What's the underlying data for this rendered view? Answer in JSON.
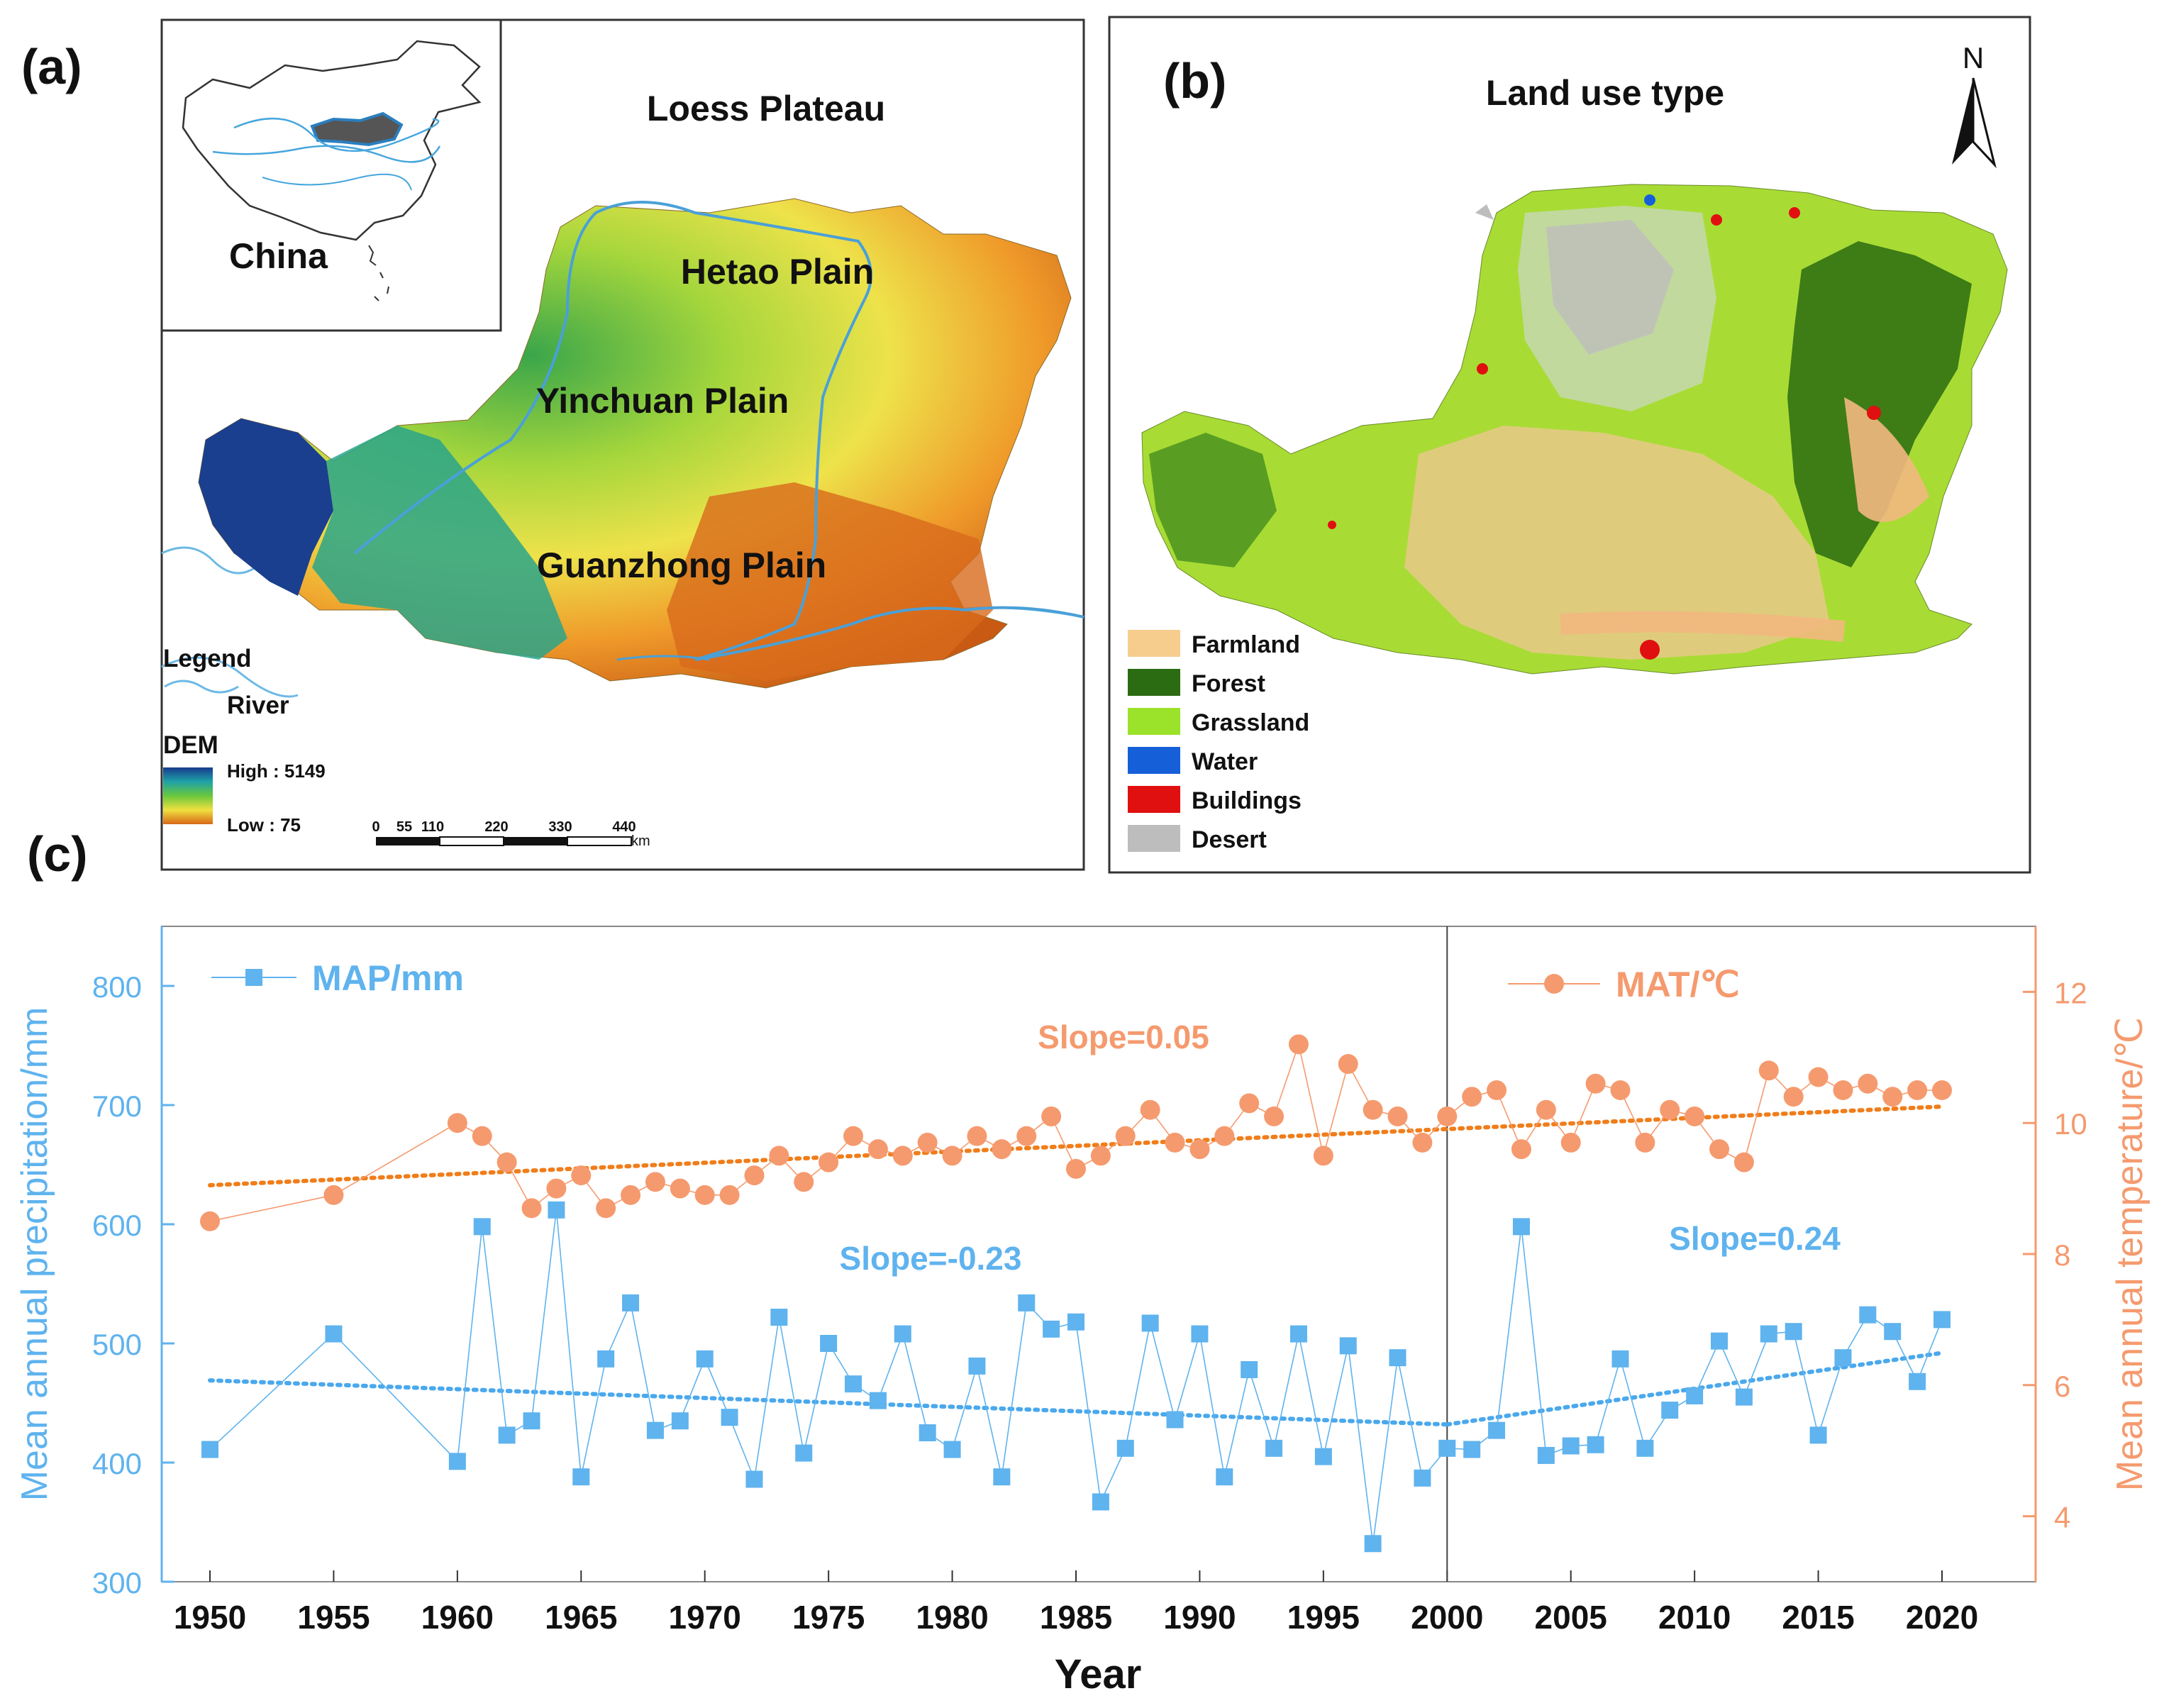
{
  "panel_a": {
    "label": "(a)",
    "title": "Loess Plateau",
    "inset_label": "China",
    "places": {
      "hetao": "Hetao Plain",
      "yinchuan": "Yinchuan Plain",
      "guanzhong": "Guanzhong Plain"
    },
    "legend": {
      "title": "Legend",
      "river": "River",
      "dem_title": "DEM",
      "high": "High : 5149",
      "low": "Low : 75"
    },
    "scalebar": {
      "ticks": [
        "0",
        "55",
        "110",
        "220",
        "330",
        "440"
      ],
      "unit": "km"
    }
  },
  "panel_b": {
    "label": "(b)",
    "title": "Land use type",
    "north": "N",
    "legend": [
      {
        "label": "Farmland",
        "color": "#f7cd8e"
      },
      {
        "label": "Forest",
        "color": "#2b6b12"
      },
      {
        "label": "Grassland",
        "color": "#9be22a"
      },
      {
        "label": "Water",
        "color": "#1560d8"
      },
      {
        "label": "Buildings",
        "color": "#e01010"
      },
      {
        "label": "Desert",
        "color": "#bdbdbd"
      }
    ]
  },
  "panel_c": {
    "label": "(c)",
    "map_legend": "MAP/mm",
    "mat_legend": "MAT/℃",
    "slope_mat": "Slope=0.05",
    "slope_map_1": "Slope=-0.23",
    "slope_map_2": "Slope=0.24",
    "colors": {
      "map": "#5fb3ee",
      "mat": "#f59a6e",
      "map_trend": "#4aa8ec",
      "mat_trend": "#f07d1a"
    }
  },
  "chart_data": {
    "type": "line",
    "title": "",
    "xlabel": "Year",
    "ylabel": "Mean annual precipitation/mm",
    "y2label": "Mean annual temperature/℃",
    "xlim": [
      1947,
      2024
    ],
    "ylim": [
      300,
      850
    ],
    "y2lim": [
      3,
      13
    ],
    "xticks": [
      "1950",
      "1955",
      "1960",
      "1965",
      "1970",
      "1975",
      "1980",
      "1985",
      "1990",
      "1995",
      "2000",
      "2005",
      "2010",
      "2015",
      "2020"
    ],
    "yticks": [
      "300",
      "400",
      "500",
      "600",
      "700",
      "800"
    ],
    "y2ticks": [
      "4",
      "6",
      "8",
      "10",
      "12"
    ],
    "breakpoint_year": 2000,
    "series": [
      {
        "name": "MAP/mm",
        "axis": "left",
        "x": [
          1950,
          1955,
          1960,
          1961,
          1962,
          1963,
          1964,
          1965,
          1966,
          1967,
          1968,
          1969,
          1970,
          1971,
          1972,
          1973,
          1974,
          1975,
          1976,
          1977,
          1978,
          1979,
          1980,
          1981,
          1982,
          1983,
          1984,
          1985,
          1986,
          1987,
          1988,
          1989,
          1990,
          1991,
          1992,
          1993,
          1994,
          1995,
          1996,
          1997,
          1998,
          1999,
          2000,
          2001,
          2002,
          2003,
          2004,
          2005,
          2006,
          2007,
          2008,
          2009,
          2010,
          2011,
          2012,
          2013,
          2014,
          2015,
          2016,
          2017,
          2018,
          2019,
          2020
        ],
        "values": [
          411,
          508,
          401,
          598,
          423,
          435,
          612,
          388,
          487,
          534,
          427,
          435,
          487,
          438,
          386,
          522,
          408,
          500,
          466,
          452,
          508,
          425,
          411,
          481,
          388,
          534,
          512,
          518,
          367,
          412,
          517,
          436,
          508,
          388,
          478,
          412,
          508,
          405,
          498,
          332,
          488,
          387,
          412,
          411,
          427,
          598,
          406,
          414,
          415,
          487,
          412,
          444,
          456,
          502,
          455,
          508,
          510,
          423,
          488,
          524,
          510,
          468,
          520
        ],
        "trend": [
          {
            "x": [
              1950,
              2000
            ],
            "y": [
              469,
              432
            ],
            "slope": -0.23
          },
          {
            "x": [
              2000,
              2020
            ],
            "y": [
              432,
              492
            ],
            "slope": 0.24
          }
        ]
      },
      {
        "name": "MAT/℃",
        "axis": "right",
        "x": [
          1950,
          1955,
          1960,
          1961,
          1962,
          1963,
          1964,
          1965,
          1966,
          1967,
          1968,
          1969,
          1970,
          1971,
          1972,
          1973,
          1974,
          1975,
          1976,
          1977,
          1978,
          1979,
          1980,
          1981,
          1982,
          1983,
          1984,
          1985,
          1986,
          1987,
          1988,
          1989,
          1990,
          1991,
          1992,
          1993,
          1994,
          1995,
          1996,
          1997,
          1998,
          1999,
          2000,
          2001,
          2002,
          2003,
          2004,
          2005,
          2006,
          2007,
          2008,
          2009,
          2010,
          2011,
          2012,
          2013,
          2014,
          2015,
          2016,
          2017,
          2018,
          2019,
          2020
        ],
        "values": [
          8.5,
          8.9,
          10.0,
          9.8,
          9.4,
          8.7,
          9.0,
          9.2,
          8.7,
          8.9,
          9.1,
          9.0,
          8.9,
          8.9,
          9.2,
          9.5,
          9.1,
          9.4,
          9.8,
          9.6,
          9.5,
          9.7,
          9.5,
          9.8,
          9.6,
          9.8,
          10.1,
          9.3,
          9.5,
          9.8,
          10.2,
          9.7,
          9.6,
          9.8,
          10.3,
          10.1,
          11.2,
          9.5,
          10.9,
          10.2,
          10.1,
          9.7,
          10.1,
          10.4,
          10.5,
          9.6,
          10.2,
          9.7,
          10.6,
          10.5,
          9.7,
          10.2,
          10.1,
          9.6,
          9.4,
          10.8,
          10.4,
          10.7,
          10.5,
          10.6,
          10.4,
          10.5,
          10.5
        ],
        "trend": [
          {
            "x": [
              1950,
              2020
            ],
            "y": [
              9.05,
              10.25
            ],
            "slope": 0.05
          }
        ]
      }
    ]
  }
}
